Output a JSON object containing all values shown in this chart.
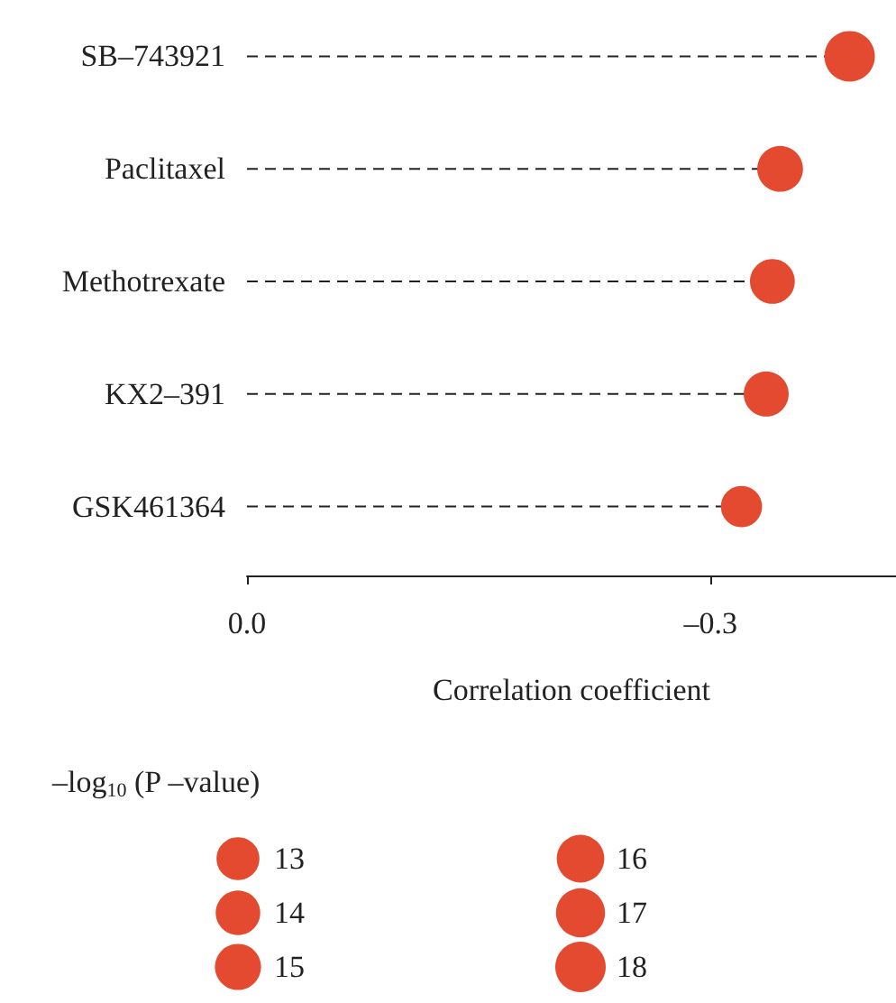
{
  "chart_data": {
    "type": "lollipop",
    "categories": [
      "SB–743921",
      "Paclitaxel",
      "Methotrexate",
      "KX2–391",
      "GSK461364"
    ],
    "values": [
      -0.39,
      -0.345,
      -0.34,
      -0.336,
      -0.32
    ],
    "sizes": [
      18,
      14.8,
      14.2,
      14.3,
      12
    ],
    "size_legend": [
      13,
      14,
      15,
      16,
      17,
      18
    ],
    "legend_title": "–log$_{10}$ (P –value)",
    "color": "#e34a2f",
    "orientation": "horizontal",
    "marker": "circle",
    "line_style": "dashed",
    "xlabel": "Correlation coefficient",
    "xlim": [
      0,
      -0.42
    ],
    "xticks": [
      {
        "value": 0,
        "label": "0.0"
      },
      {
        "value": -0.3,
        "label": "–0.3"
      }
    ],
    "grid": false
  }
}
